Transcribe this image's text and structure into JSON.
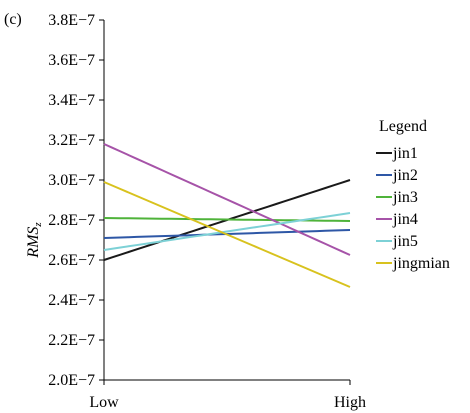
{
  "panel_label": "(c)",
  "chart_data": {
    "type": "line",
    "title": "",
    "xlabel": "",
    "ylabel_main": "RMS",
    "ylabel_sub": "z",
    "categories": [
      "Low",
      "High"
    ],
    "ylim": [
      2e-07,
      3.8e-07
    ],
    "y_ticks": [
      {
        "value": 2e-07,
        "label": "2.0E−7"
      },
      {
        "value": 2.2e-07,
        "label": "2.2E−7"
      },
      {
        "value": 2.4e-07,
        "label": "2.4E−7"
      },
      {
        "value": 2.6e-07,
        "label": "2.6E−7"
      },
      {
        "value": 2.8e-07,
        "label": "2.8E−7"
      },
      {
        "value": 3e-07,
        "label": "3.0E−7"
      },
      {
        "value": 3.2e-07,
        "label": "3.2E−7"
      },
      {
        "value": 3.4e-07,
        "label": "3.4E−7"
      },
      {
        "value": 3.6e-07,
        "label": "3.6E−7"
      },
      {
        "value": 3.8e-07,
        "label": "3.8E−7"
      }
    ],
    "legend": {
      "title": "Legend",
      "placement": "right"
    },
    "series": [
      {
        "name": "jin1",
        "color": "#1a1a1a",
        "values": [
          2.6e-07,
          3e-07
        ]
      },
      {
        "name": "jin2",
        "color": "#2e57a6",
        "values": [
          2.71e-07,
          2.75e-07
        ]
      },
      {
        "name": "jin3",
        "color": "#4fb33a",
        "values": [
          2.81e-07,
          2.795e-07
        ]
      },
      {
        "name": "jin4",
        "color": "#a653a8",
        "values": [
          3.18e-07,
          2.625e-07
        ]
      },
      {
        "name": "jin5",
        "color": "#7dd1d6",
        "values": [
          2.65e-07,
          2.835e-07
        ]
      },
      {
        "name": "jingmian",
        "color": "#d8c21e",
        "values": [
          2.99e-07,
          2.465e-07
        ]
      }
    ]
  }
}
